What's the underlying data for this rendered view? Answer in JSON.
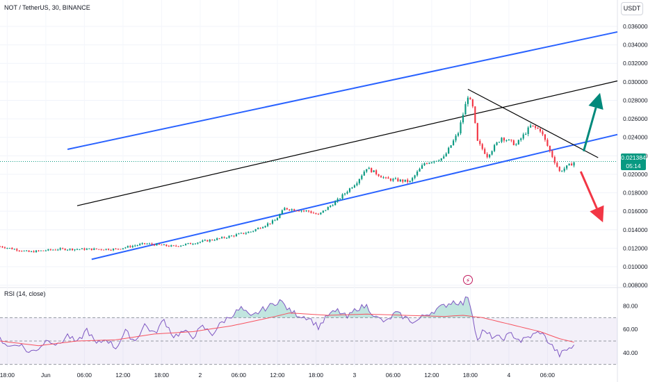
{
  "symbol_legend": "NOT / TetherUS, 30, BINANCE",
  "rsi_legend": "RSI (14, close)",
  "currency_label": "USDT",
  "last_price": "0.021384",
  "countdown": "05:14",
  "colors": {
    "up": "#089981",
    "down": "#f23645",
    "channel": "#2962ff",
    "midline": "#000000",
    "rsi": "#7e57c2",
    "rsi_ma": "#f7525f",
    "up_arrow": "#00897b",
    "down_arrow": "#f23645"
  },
  "icons": {
    "lightning": "lightning-icon"
  },
  "chart_data": [
    {
      "type": "candlestick",
      "title": "NOT / TetherUS, 30, BINANCE",
      "y_tick_labels": [
        "0.036000",
        "0.034000",
        "0.032000",
        "0.030000",
        "0.028000",
        "0.026000",
        "0.024000",
        "0.022000",
        "0.020000",
        "0.018000",
        "0.016000",
        "0.014000",
        "0.012000",
        "0.010000",
        "0.008000"
      ],
      "ylim": [
        0.0079,
        0.0372
      ],
      "x_tick_labels": [
        "18:00",
        "Jun",
        "06:00",
        "12:00",
        "18:00",
        "2",
        "06:00",
        "12:00",
        "18:00",
        "3",
        "06:00",
        "12:00",
        "18:00",
        "4",
        "06:00"
      ],
      "xlim": [
        -18,
        46
      ],
      "current_price": 0.021384,
      "anchors": [
        {
          "t": -18.0,
          "p": 0.0122
        },
        {
          "t": -15.0,
          "p": 0.0116
        },
        {
          "t": -12.0,
          "p": 0.0119
        },
        {
          "t": -6.0,
          "p": 0.0119
        },
        {
          "t": -3.0,
          "p": 0.0125
        },
        {
          "t": 0.0,
          "p": 0.0122
        },
        {
          "t": 5.0,
          "p": 0.0131
        },
        {
          "t": 8.0,
          "p": 0.0138
        },
        {
          "t": 10.5,
          "p": 0.015
        },
        {
          "t": 11.5,
          "p": 0.0163
        },
        {
          "t": 14.0,
          "p": 0.016
        },
        {
          "t": 15.0,
          "p": 0.0156
        },
        {
          "t": 17.0,
          "p": 0.0172
        },
        {
          "t": 19.0,
          "p": 0.0192
        },
        {
          "t": 20.0,
          "p": 0.0207
        },
        {
          "t": 22.0,
          "p": 0.0195
        },
        {
          "t": 24.5,
          "p": 0.0192
        },
        {
          "t": 26.0,
          "p": 0.0212
        },
        {
          "t": 28.0,
          "p": 0.0218
        },
        {
          "t": 29.5,
          "p": 0.0245
        },
        {
          "t": 30.5,
          "p": 0.0285
        },
        {
          "t": 31.0,
          "p": 0.0272
        },
        {
          "t": 31.5,
          "p": 0.0235
        },
        {
          "t": 32.5,
          "p": 0.022
        },
        {
          "t": 34.0,
          "p": 0.024
        },
        {
          "t": 35.5,
          "p": 0.0232
        },
        {
          "t": 37.0,
          "p": 0.0252
        },
        {
          "t": 38.0,
          "p": 0.0248
        },
        {
          "t": 39.0,
          "p": 0.0225
        },
        {
          "t": 40.0,
          "p": 0.0203
        },
        {
          "t": 41.5,
          "p": 0.0213
        }
      ],
      "lines": [
        {
          "name": "upper-channel",
          "from": {
            "t": -11,
            "p": 0.0227
          },
          "to": {
            "t": 46,
            "p": 0.0354
          }
        },
        {
          "name": "mid-line",
          "from": {
            "t": -10,
            "p": 0.0166
          },
          "to": {
            "t": 46,
            "p": 0.0301
          }
        },
        {
          "name": "lower-channel",
          "from": {
            "t": -8.5,
            "p": 0.0108
          },
          "to": {
            "t": 46,
            "p": 0.0243
          }
        },
        {
          "name": "descending-line",
          "from": {
            "t": 30.5,
            "p": 0.0292
          },
          "to": {
            "t": 44,
            "p": 0.0218
          }
        }
      ],
      "arrows": [
        {
          "name": "up-arrow",
          "from": {
            "t": 42.5,
            "p": 0.0225
          },
          "to": {
            "t": 44.2,
            "p": 0.0288
          }
        },
        {
          "name": "down-arrow",
          "from": {
            "t": 42.2,
            "p": 0.0203
          },
          "to": {
            "t": 44.5,
            "p": 0.0148
          }
        }
      ]
    },
    {
      "type": "line",
      "title": "RSI (14, close)",
      "y_tick_labels": [
        "80.00",
        "60.00",
        "40.00"
      ],
      "ylim": [
        28,
        91
      ],
      "band": [
        30,
        70
      ],
      "midline": 50,
      "series": [
        {
          "name": "rsi",
          "anchors": [
            {
              "t": -18,
              "v": 52
            },
            {
              "t": -17,
              "v": 45
            },
            {
              "t": -16,
              "v": 48
            },
            {
              "t": -15,
              "v": 40
            },
            {
              "t": -14,
              "v": 44
            },
            {
              "t": -13,
              "v": 52
            },
            {
              "t": -12,
              "v": 46
            },
            {
              "t": -11,
              "v": 55
            },
            {
              "t": -10,
              "v": 48
            },
            {
              "t": -9,
              "v": 60
            },
            {
              "t": -8,
              "v": 47
            },
            {
              "t": -7,
              "v": 52
            },
            {
              "t": -6,
              "v": 44
            },
            {
              "t": -5,
              "v": 58
            },
            {
              "t": -4,
              "v": 50
            },
            {
              "t": -3,
              "v": 64
            },
            {
              "t": -2,
              "v": 56
            },
            {
              "t": -1,
              "v": 68
            },
            {
              "t": 0,
              "v": 54
            },
            {
              "t": 1,
              "v": 58
            },
            {
              "t": 2,
              "v": 54
            },
            {
              "t": 3,
              "v": 62
            },
            {
              "t": 4,
              "v": 56
            },
            {
              "t": 5,
              "v": 66
            },
            {
              "t": 6,
              "v": 72
            },
            {
              "t": 7,
              "v": 78
            },
            {
              "t": 8,
              "v": 70
            },
            {
              "t": 9,
              "v": 76
            },
            {
              "t": 10,
              "v": 80
            },
            {
              "t": 11,
              "v": 85
            },
            {
              "t": 12,
              "v": 76
            },
            {
              "t": 13,
              "v": 72
            },
            {
              "t": 14,
              "v": 70
            },
            {
              "t": 15,
              "v": 62
            },
            {
              "t": 16,
              "v": 72
            },
            {
              "t": 17,
              "v": 76
            },
            {
              "t": 18,
              "v": 70
            },
            {
              "t": 19,
              "v": 78
            },
            {
              "t": 20,
              "v": 80
            },
            {
              "t": 21,
              "v": 70
            },
            {
              "t": 22,
              "v": 66
            },
            {
              "t": 23,
              "v": 74
            },
            {
              "t": 24,
              "v": 70
            },
            {
              "t": 25,
              "v": 66
            },
            {
              "t": 26,
              "v": 72
            },
            {
              "t": 27,
              "v": 76
            },
            {
              "t": 28,
              "v": 80
            },
            {
              "t": 29,
              "v": 84
            },
            {
              "t": 30,
              "v": 82
            },
            {
              "t": 30.5,
              "v": 89
            },
            {
              "t": 31,
              "v": 72
            },
            {
              "t": 31.5,
              "v": 50
            },
            {
              "t": 32,
              "v": 58
            },
            {
              "t": 33,
              "v": 54
            },
            {
              "t": 34,
              "v": 52
            },
            {
              "t": 35,
              "v": 56
            },
            {
              "t": 36,
              "v": 50
            },
            {
              "t": 37,
              "v": 54
            },
            {
              "t": 38,
              "v": 58
            },
            {
              "t": 39,
              "v": 48
            },
            {
              "t": 40,
              "v": 38
            },
            {
              "t": 41,
              "v": 44
            },
            {
              "t": 41.5,
              "v": 45
            }
          ]
        },
        {
          "name": "rsi-ma",
          "anchors": [
            {
              "t": -18,
              "v": 50
            },
            {
              "t": -14,
              "v": 46
            },
            {
              "t": -10,
              "v": 50
            },
            {
              "t": -6,
              "v": 51
            },
            {
              "t": -2,
              "v": 56
            },
            {
              "t": 2,
              "v": 58
            },
            {
              "t": 6,
              "v": 63
            },
            {
              "t": 10,
              "v": 70
            },
            {
              "t": 12,
              "v": 74
            },
            {
              "t": 16,
              "v": 72
            },
            {
              "t": 20,
              "v": 73
            },
            {
              "t": 24,
              "v": 72
            },
            {
              "t": 28,
              "v": 71
            },
            {
              "t": 30,
              "v": 72
            },
            {
              "t": 32,
              "v": 70
            },
            {
              "t": 34,
              "v": 66
            },
            {
              "t": 36,
              "v": 62
            },
            {
              "t": 38,
              "v": 58
            },
            {
              "t": 40,
              "v": 52
            },
            {
              "t": 41.5,
              "v": 49
            }
          ]
        }
      ]
    }
  ]
}
